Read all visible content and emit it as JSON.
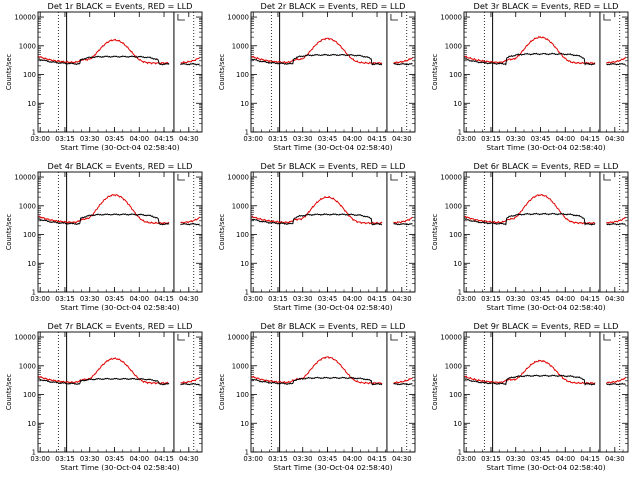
{
  "colors": {
    "events": "#000000",
    "lld": "#e00000",
    "axis": "#000000",
    "background": "#ffffff"
  },
  "chart_data": [
    {
      "type": "line",
      "title": "Det 1r BLACK = Events, RED = LLD",
      "xlabel": "Start Time (30-Oct-04 02:58:40)",
      "ylabel": "Counts/sec",
      "yscale": "log",
      "ylim": [
        1,
        15000
      ],
      "xlim": [
        "02:58:40",
        "04:38:00"
      ],
      "x_ticks": [
        "03:00",
        "03:15",
        "03:30",
        "03:45",
        "04:00",
        "04:15",
        "04:30"
      ],
      "y_ticks": [
        "1",
        "10",
        "100",
        "1000",
        "10000"
      ],
      "vertical_markers": {
        "solid": [
          "03:16",
          "04:21"
        ],
        "dotted": [
          "03:11",
          "04:33"
        ]
      },
      "peak_lld": 1600,
      "peak_events": 420,
      "series": []
    },
    {
      "type": "line",
      "title": "Det 2r BLACK = Events, RED = LLD",
      "xlabel": "Start Time (30-Oct-04 02:58:40)",
      "ylabel": "Counts/sec",
      "yscale": "log",
      "ylim": [
        1,
        15000
      ],
      "xlim": [
        "02:58:40",
        "04:38:00"
      ],
      "x_ticks": [
        "03:00",
        "03:15",
        "03:30",
        "03:45",
        "04:00",
        "04:15",
        "04:30"
      ],
      "y_ticks": [
        "1",
        "10",
        "100",
        "1000",
        "10000"
      ],
      "vertical_markers": {
        "solid": [
          "03:16",
          "04:21"
        ],
        "dotted": [
          "03:11",
          "04:33"
        ]
      },
      "peak_lld": 1800,
      "peak_events": 480,
      "series": []
    },
    {
      "type": "line",
      "title": "Det 3r BLACK = Events, RED = LLD",
      "xlabel": "Start Time (30-Oct-04 02:58:40)",
      "ylabel": "Counts/sec",
      "yscale": "log",
      "ylim": [
        1,
        15000
      ],
      "xlim": [
        "02:58:40",
        "04:38:00"
      ],
      "x_ticks": [
        "03:00",
        "03:15",
        "03:30",
        "03:45",
        "04:00",
        "04:15",
        "04:30"
      ],
      "y_ticks": [
        "1",
        "10",
        "100",
        "1000",
        "10000"
      ],
      "vertical_markers": {
        "solid": [
          "03:16",
          "04:21"
        ],
        "dotted": [
          "03:11",
          "04:33"
        ]
      },
      "peak_lld": 2000,
      "peak_events": 520,
      "series": []
    },
    {
      "type": "line",
      "title": "Det 4r BLACK = Events, RED = LLD",
      "xlabel": "Start Time (30-Oct-04 02:58:40)",
      "ylabel": "Counts/sec",
      "yscale": "log",
      "ylim": [
        1,
        15000
      ],
      "xlim": [
        "02:58:40",
        "04:38:00"
      ],
      "x_ticks": [
        "03:00",
        "03:15",
        "03:30",
        "03:45",
        "04:00",
        "04:15",
        "04:30"
      ],
      "y_ticks": [
        "1",
        "10",
        "100",
        "1000",
        "10000"
      ],
      "vertical_markers": {
        "solid": [
          "03:16",
          "04:21"
        ],
        "dotted": [
          "03:11",
          "04:33"
        ]
      },
      "peak_lld": 2400,
      "peak_events": 500,
      "series": []
    },
    {
      "type": "line",
      "title": "Det 5r BLACK = Events, RED = LLD",
      "xlabel": "Start Time (30-Oct-04 02:58:40)",
      "ylabel": "Counts/sec",
      "yscale": "log",
      "ylim": [
        1,
        15000
      ],
      "xlim": [
        "02:58:40",
        "04:38:00"
      ],
      "x_ticks": [
        "03:00",
        "03:15",
        "03:30",
        "03:45",
        "04:00",
        "04:15",
        "04:30"
      ],
      "y_ticks": [
        "1",
        "10",
        "100",
        "1000",
        "10000"
      ],
      "vertical_markers": {
        "solid": [
          "03:16",
          "04:21"
        ],
        "dotted": [
          "03:11",
          "04:33"
        ]
      },
      "peak_lld": 2000,
      "peak_events": 500,
      "series": []
    },
    {
      "type": "line",
      "title": "Det 6r BLACK = Events, RED = LLD",
      "xlabel": "Start Time (30-Oct-04 02:58:40)",
      "ylabel": "Counts/sec",
      "yscale": "log",
      "ylim": [
        1,
        15000
      ],
      "xlim": [
        "02:58:40",
        "04:38:00"
      ],
      "x_ticks": [
        "03:00",
        "03:15",
        "03:30",
        "03:45",
        "04:00",
        "04:15",
        "04:30"
      ],
      "y_ticks": [
        "1",
        "10",
        "100",
        "1000",
        "10000"
      ],
      "vertical_markers": {
        "solid": [
          "03:16",
          "04:21"
        ],
        "dotted": [
          "03:11",
          "04:33"
        ]
      },
      "peak_lld": 2400,
      "peak_events": 520,
      "series": []
    },
    {
      "type": "line",
      "title": "Det 7r BLACK = Events, RED = LLD",
      "xlabel": "Start Time (30-Oct-04 02:58:40)",
      "ylabel": "Counts/sec",
      "yscale": "log",
      "ylim": [
        1,
        15000
      ],
      "xlim": [
        "02:58:40",
        "04:38:00"
      ],
      "x_ticks": [
        "03:00",
        "03:15",
        "03:30",
        "03:45",
        "04:00",
        "04:15",
        "04:30"
      ],
      "y_ticks": [
        "1",
        "10",
        "100",
        "1000",
        "10000"
      ],
      "vertical_markers": {
        "solid": [
          "03:16",
          "04:21"
        ],
        "dotted": [
          "03:11",
          "04:33"
        ]
      },
      "peak_lld": 1800,
      "peak_events": 350,
      "series": []
    },
    {
      "type": "line",
      "title": "Det 8r BLACK = Events, RED = LLD",
      "xlabel": "Start Time (30-Oct-04 02:58:40)",
      "ylabel": "Counts/sec",
      "yscale": "log",
      "ylim": [
        1,
        15000
      ],
      "xlim": [
        "02:58:40",
        "04:38:00"
      ],
      "x_ticks": [
        "03:00",
        "03:15",
        "03:30",
        "03:45",
        "04:00",
        "04:15",
        "04:30"
      ],
      "y_ticks": [
        "1",
        "10",
        "100",
        "1000",
        "10000"
      ],
      "vertical_markers": {
        "solid": [
          "03:16",
          "04:21"
        ],
        "dotted": [
          "03:11",
          "04:33"
        ]
      },
      "peak_lld": 2000,
      "peak_events": 380,
      "series": []
    },
    {
      "type": "line",
      "title": "Det 9r BLACK = Events, RED = LLD",
      "xlabel": "Start Time (30-Oct-04 02:58:40)",
      "ylabel": "Counts/sec",
      "yscale": "log",
      "ylim": [
        1,
        15000
      ],
      "xlim": [
        "02:58:40",
        "04:38:00"
      ],
      "x_ticks": [
        "03:00",
        "03:15",
        "03:30",
        "03:45",
        "04:00",
        "04:15",
        "04:30"
      ],
      "y_ticks": [
        "1",
        "10",
        "100",
        "1000",
        "10000"
      ],
      "vertical_markers": {
        "solid": [
          "03:16",
          "04:21"
        ],
        "dotted": [
          "03:11",
          "04:33"
        ]
      },
      "peak_lld": 1500,
      "peak_events": 450,
      "series": []
    }
  ]
}
